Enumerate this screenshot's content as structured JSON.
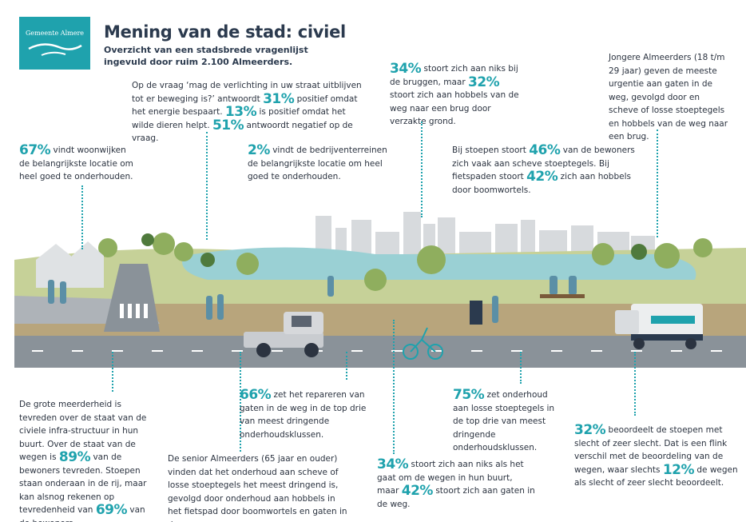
{
  "logo": {
    "name": "Gemeente Almere"
  },
  "header": {
    "title": "Mening van de stad: civiel",
    "subtitle": "Overzicht van een stadsbrede vragenlijst ingevuld door ruim 2.100 Almeerders."
  },
  "lighting": {
    "q1": "Op de vraag ‘mag de verlichting in uw straat uitblijven tot er beweging is?’ antwoordt",
    "p1": "31%",
    "t1": "positief omdat het energie bespaart.",
    "p2": "13%",
    "t2": "is positief omdat het wilde dieren helpt.",
    "p3": "51%",
    "t3": "antwoordt negatief op de vraag."
  },
  "bridges": {
    "p1": "34%",
    "t1": "stoort zich aan niks bij de bruggen, maar",
    "p2": "32%",
    "t2": "stoort zich aan hobbels van de weg naar een brug door verzakte grond."
  },
  "young": {
    "text": "Jongere Almeerders (18 t/m 29 jaar) geven de meeste urgentie aan gaten in de weg, gevolgd door en scheve of losse stoeptegels en hobbels van de weg naar een brug."
  },
  "residential": {
    "p1": "67%",
    "t1": "vindt woonwijken de belangrijkste locatie om heel goed te onderhouden."
  },
  "industrial": {
    "p1": "2%",
    "t1": "vindt de bedrijventerreinen de belangrijkste locatie om heel goed te onderhouden."
  },
  "sidewalks": {
    "t0": "Bij stoepen stoort",
    "p1": "46%",
    "t1": "van de bewoners zich vaak aan scheve stoeptegels. Bij fietspaden stoort",
    "p2": "42%",
    "t2": "zich aan hobbels door boomwortels."
  },
  "satisfaction": {
    "t0": "De grote meerderheid is tevreden over de staat van de civiele infra-structuur in hun buurt. Over de staat van de wegen is",
    "p1": "89%",
    "t1": "van de bewoners tevreden. Stoepen staan onderaan in de rij, maar kan alsnog rekenen op tevredenheid van",
    "p2": "69%",
    "t2": "van de bewoners."
  },
  "repair": {
    "p1": "66%",
    "t1": "zet het repareren van gaten in de weg in de top drie van meest dringende onderhoudsklussen."
  },
  "seniors": {
    "text": "De senior Almeerders (65 jaar en ouder) vinden dat het onderhoud aan scheve of losse stoeptegels het meest dringend is, gevolgd door onderhoud aan hobbels in het fietspad door boomwortels en gaten in de weg."
  },
  "tiles": {
    "p1": "75%",
    "t1": "zet onderhoud aan losse stoeptegels in de top drie van meest dringende onderhoudsklussen."
  },
  "holes": {
    "p1": "34%",
    "t1": "stoort zich aan niks als het gaat om de wegen in hun buurt, maar",
    "p2": "42%",
    "t2": "stoort zich aan gaten in de weg."
  },
  "rating": {
    "p1": "32%",
    "t1": "beoordeelt de stoepen met slecht of zeer slecht. Dat is een flink verschil met de beoordeling van de wegen, waar slechts",
    "p2": "12%",
    "t2": "de wegen als slecht of zeer slecht beoordeelt."
  },
  "colors": {
    "accent": "#1fa2ad",
    "navy": "#2b3a4e",
    "road": "#8a9299",
    "grass": "#b9c78a",
    "water": "#9ad0d4"
  }
}
